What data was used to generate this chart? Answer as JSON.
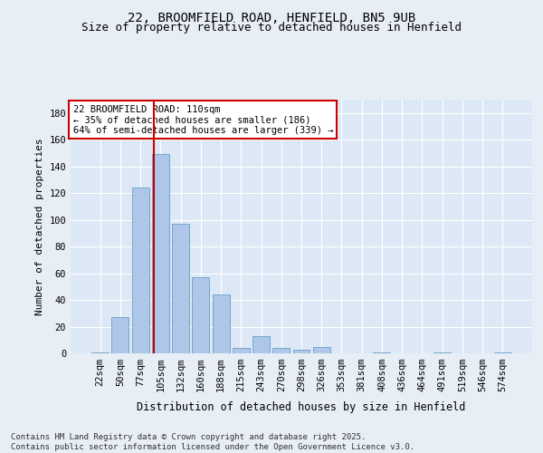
{
  "title1": "22, BROOMFIELD ROAD, HENFIELD, BN5 9UB",
  "title2": "Size of property relative to detached houses in Henfield",
  "xlabel": "Distribution of detached houses by size in Henfield",
  "ylabel": "Number of detached properties",
  "categories": [
    "22sqm",
    "50sqm",
    "77sqm",
    "105sqm",
    "132sqm",
    "160sqm",
    "188sqm",
    "215sqm",
    "243sqm",
    "270sqm",
    "298sqm",
    "326sqm",
    "353sqm",
    "381sqm",
    "408sqm",
    "436sqm",
    "464sqm",
    "491sqm",
    "519sqm",
    "546sqm",
    "574sqm"
  ],
  "values": [
    1,
    27,
    124,
    149,
    97,
    57,
    44,
    4,
    13,
    4,
    3,
    5,
    0,
    0,
    1,
    0,
    0,
    1,
    0,
    0,
    1
  ],
  "bar_color": "#aec6e8",
  "bar_edge_color": "#6a9fc8",
  "vline_color": "#cc0000",
  "vline_pos": 2.68,
  "annotation_text": "22 BROOMFIELD ROAD: 110sqm\n← 35% of detached houses are smaller (186)\n64% of semi-detached houses are larger (339) →",
  "annotation_box_color": "#ffffff",
  "annotation_box_edge": "#cc0000",
  "bg_color": "#e8eef5",
  "plot_bg_color": "#dce8f5",
  "grid_color": "#ffffff",
  "ylim": [
    0,
    190
  ],
  "yticks": [
    0,
    20,
    40,
    60,
    80,
    100,
    120,
    140,
    160,
    180
  ],
  "footer": "Contains HM Land Registry data © Crown copyright and database right 2025.\nContains public sector information licensed under the Open Government Licence v3.0.",
  "title1_fontsize": 10,
  "title2_fontsize": 9,
  "xlabel_fontsize": 8.5,
  "ylabel_fontsize": 8,
  "tick_fontsize": 7.5,
  "annotation_fontsize": 7.5,
  "footer_fontsize": 6.5
}
